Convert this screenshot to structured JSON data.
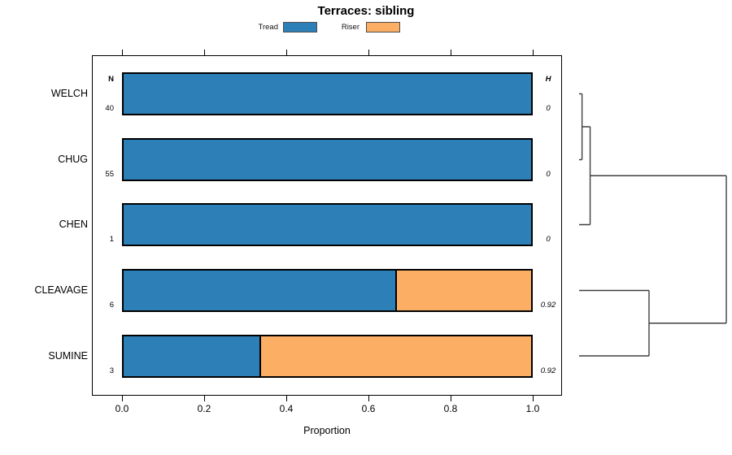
{
  "title": "Terraces: sibling",
  "legend": {
    "items": [
      {
        "label": "Tread",
        "color": "#2D7FB8"
      },
      {
        "label": "Riser",
        "color": "#FCAE64"
      }
    ]
  },
  "chart_data": {
    "type": "bar",
    "orientation": "horizontal-stacked",
    "title": "Terraces: sibling",
    "xlabel": "Proportion",
    "xlim": [
      0,
      1
    ],
    "x_ticks": [
      0,
      0.2,
      0.4,
      0.6,
      0.8,
      1.0
    ],
    "x_tick_labels": [
      "0.0",
      "0.2",
      "0.4",
      "0.6",
      "0.8",
      "1.0"
    ],
    "grid": false,
    "legend_position": "top",
    "n_column_header": "N",
    "h_column_header": "H",
    "series": [
      {
        "name": "Tread",
        "color": "#2D7FB8"
      },
      {
        "name": "Riser",
        "color": "#FCAE64"
      }
    ],
    "rows": [
      {
        "label": "WELCH",
        "n": "40",
        "h": "0",
        "tread": 1,
        "riser": 0
      },
      {
        "label": "CHUG",
        "n": "55",
        "h": "0",
        "tread": 1,
        "riser": 0
      },
      {
        "label": "CHEN",
        "n": "1",
        "h": "0",
        "tread": 1,
        "riser": 0
      },
      {
        "label": "CLEAVAGE",
        "n": "6",
        "h": "0.92",
        "tread": 0.6667,
        "riser": 0.3333
      },
      {
        "label": "SUMINE",
        "n": "3",
        "h": "0.92",
        "tread": 0.3333,
        "riser": 0.6667
      }
    ],
    "dendrogram": {
      "root": {
        "h": 1.0,
        "children": [
          {
            "h": 0.075,
            "children": [
              {
                "h": 0.02,
                "children": [
                  {
                    "leaf": "WELCH"
                  },
                  {
                    "leaf": "CHUG"
                  }
                ]
              },
              {
                "leaf": "CHEN"
              }
            ]
          },
          {
            "h": 0.475,
            "children": [
              {
                "leaf": "CLEAVAGE"
              },
              {
                "leaf": "SUMINE"
              }
            ]
          }
        ]
      }
    }
  }
}
